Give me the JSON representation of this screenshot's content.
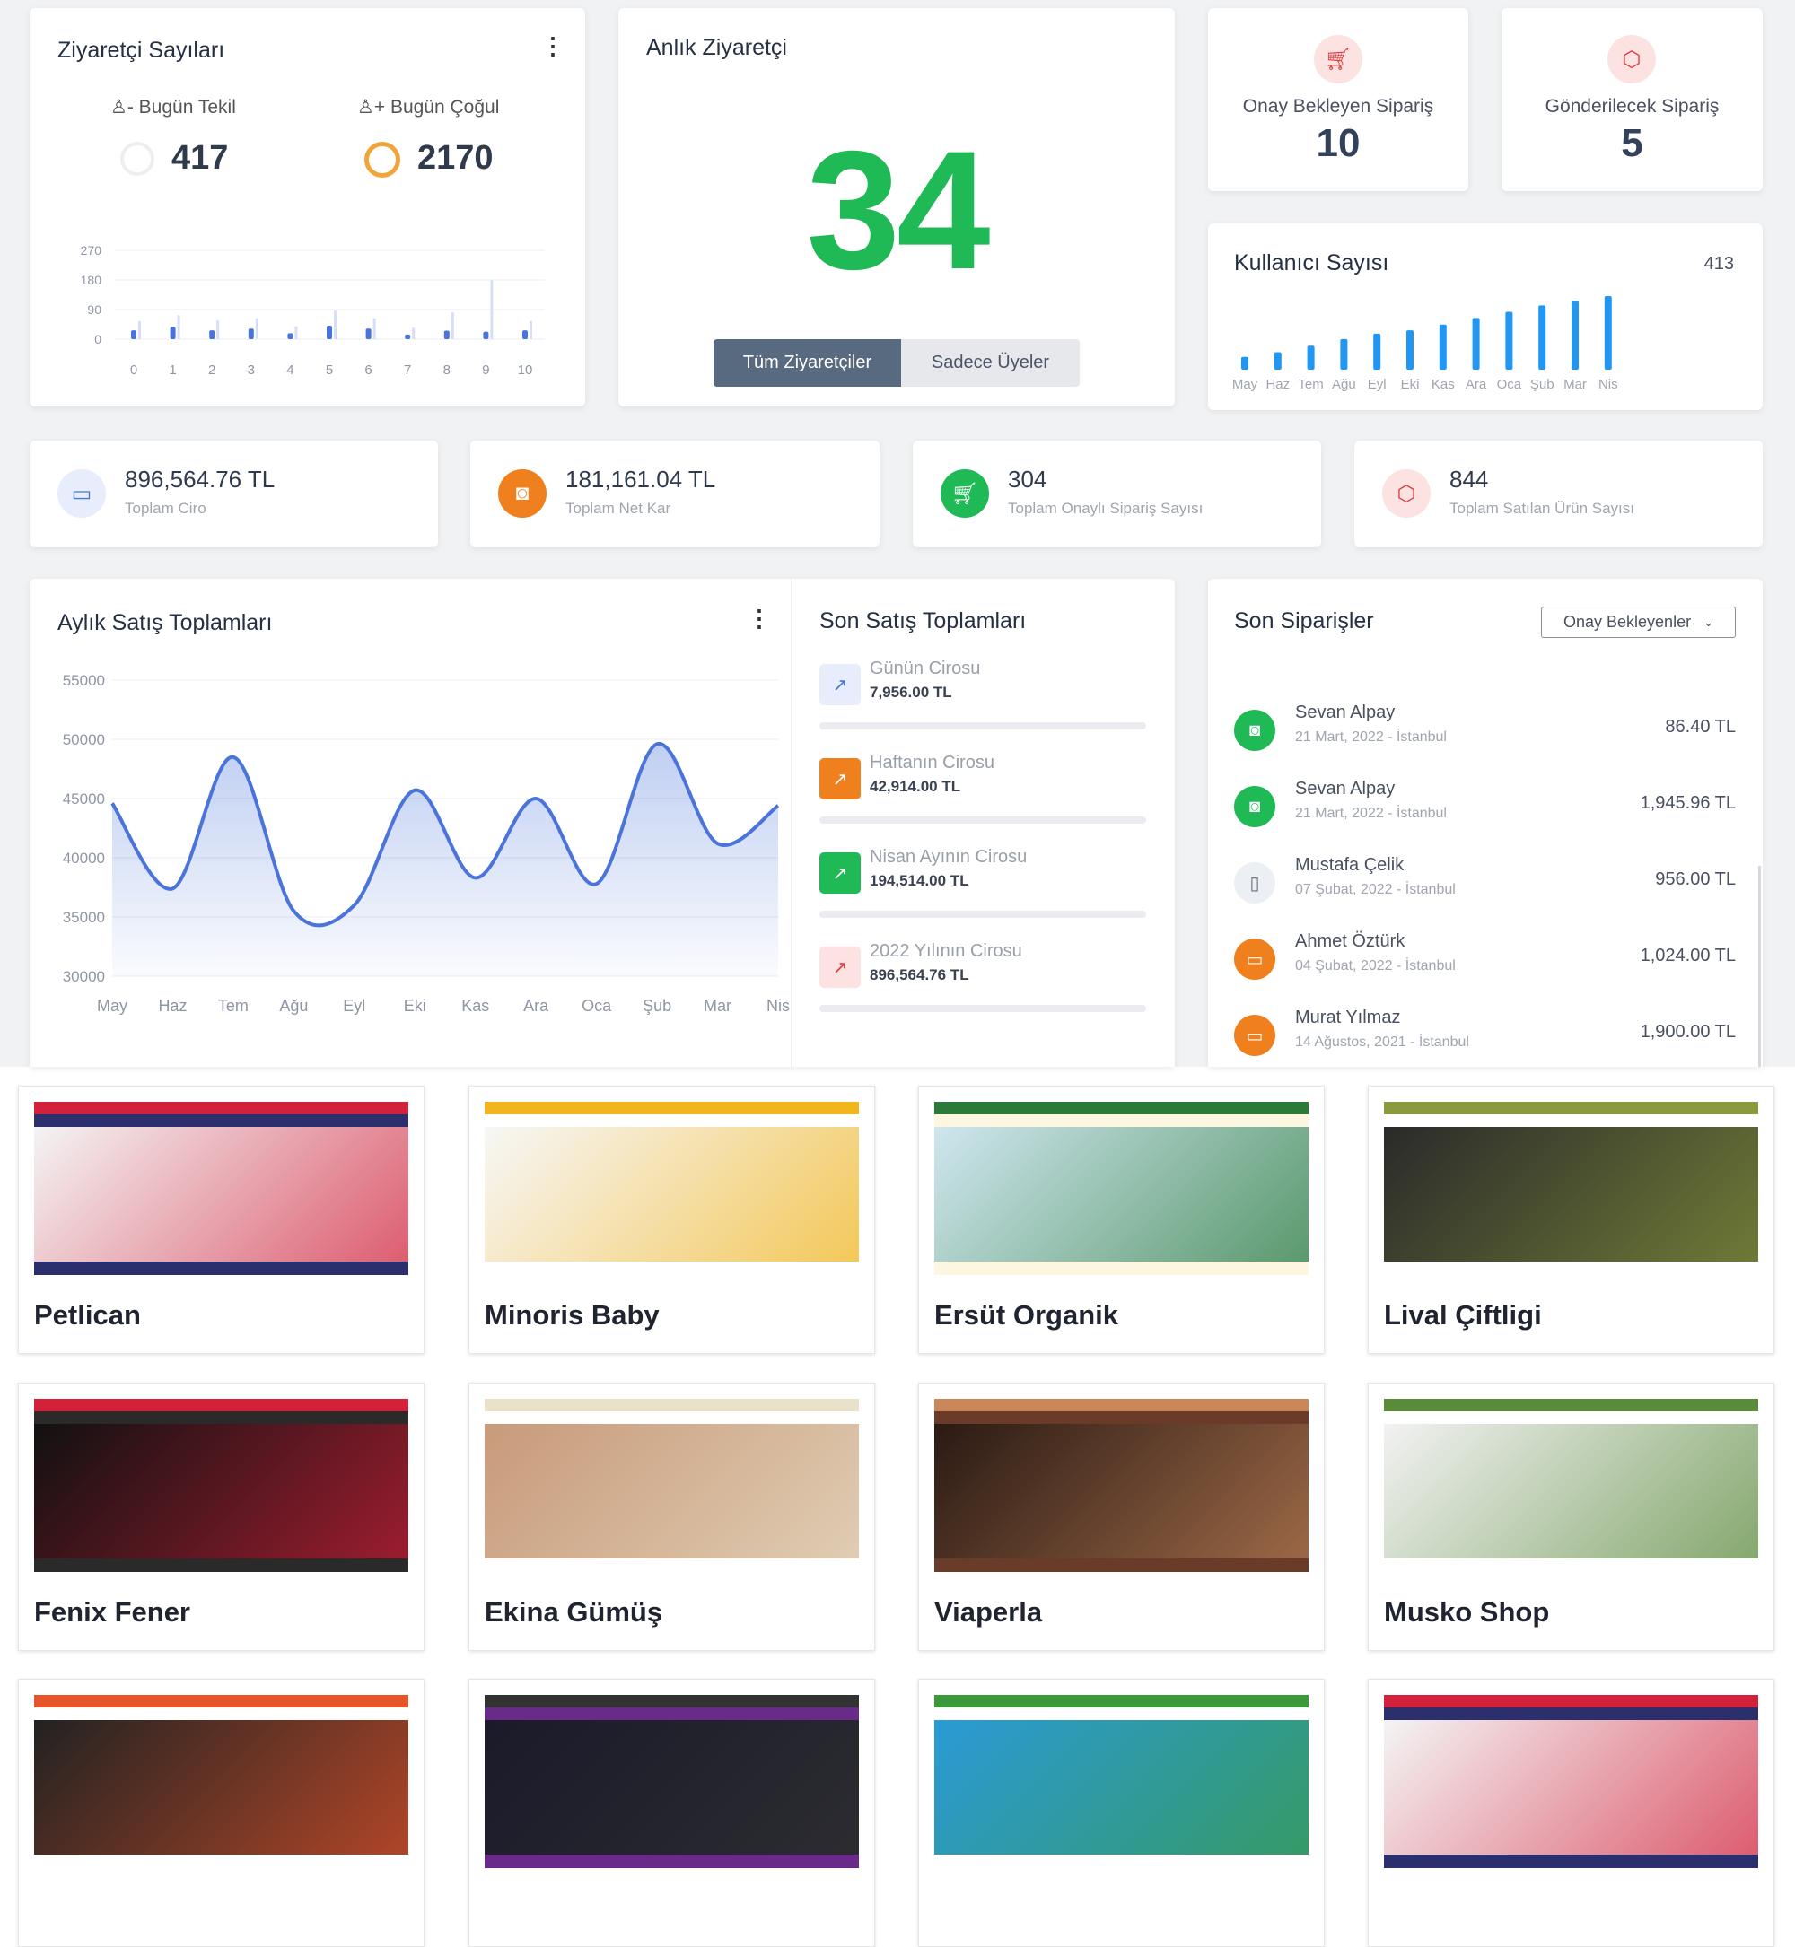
{
  "visitors": {
    "title": "Ziyaretçi Sayıları",
    "unique_label": "Bugün Tekil",
    "unique_value": "417",
    "total_label": "Bugün Çoğul",
    "total_value": "2170",
    "chart": {
      "type": "bar",
      "categories": [
        "0",
        "1",
        "2",
        "3",
        "4",
        "5",
        "6",
        "7",
        "8",
        "9",
        "10"
      ],
      "yticks": [
        "270",
        "180",
        "90",
        "0"
      ],
      "ylim": [
        0,
        270
      ],
      "series": [
        {
          "values": [
            27,
            37,
            27,
            32,
            18,
            41,
            32,
            14,
            26,
            23,
            27
          ],
          "color": "#4a74d9"
        },
        {
          "values": [
            55,
            73,
            57,
            64,
            39,
            87,
            64,
            35,
            81,
            179,
            55
          ],
          "color": "#d6defa"
        }
      ]
    }
  },
  "live": {
    "title": "Anlık Ziyaretçi",
    "value": "34",
    "color": "#1fb955",
    "btn_all": "Tüm Ziyaretçiler",
    "btn_members": "Sadece Üyeler"
  },
  "pending": {
    "label": "Onay Bekleyen Sipariş",
    "value": "10",
    "icon": "cart-icon"
  },
  "to_ship": {
    "label": "Gönderilecek Sipariş",
    "value": "5",
    "icon": "box-icon"
  },
  "users": {
    "title": "Kullanıcı Sayısı",
    "total": "413",
    "chart": {
      "type": "bar",
      "categories": [
        "May",
        "Haz",
        "Tem",
        "Ağu",
        "Eyl",
        "Eki",
        "Kas",
        "Ara",
        "Oca",
        "Şub",
        "Mar",
        "Nis"
      ],
      "values": [
        72,
        98,
        135,
        172,
        202,
        221,
        253,
        290,
        325,
        361,
        386,
        413
      ],
      "color": "#2196f3"
    }
  },
  "stats": [
    {
      "value": "896,564.76 TL",
      "label": "Toplam Ciro",
      "icon": "credit-card-icon",
      "bg": "#e8edfb",
      "fg": "#4a74d9"
    },
    {
      "value": "181,161.04 TL",
      "label": "Toplam Net Kar",
      "icon": "money-icon",
      "bg": "#f07f1e",
      "fg": "#ffffff"
    },
    {
      "value": "304",
      "label": "Toplam Onaylı Sipariş Sayısı",
      "icon": "cart-icon",
      "bg": "#1fb955",
      "fg": "#ffffff"
    },
    {
      "value": "844",
      "label": "Toplam Satılan Ürün Sayısı",
      "icon": "box-icon",
      "bg": "#fde2e2",
      "fg": "#e0393e"
    }
  ],
  "monthly": {
    "title": "Aylık Satış Toplamları",
    "chart": {
      "type": "area",
      "categories": [
        "May",
        "Haz",
        "Tem",
        "Ağu",
        "Eyl",
        "Eki",
        "Kas",
        "Ara",
        "Oca",
        "Şub",
        "Mar",
        "Nis"
      ],
      "values": [
        44600,
        37400,
        48500,
        35500,
        36000,
        45700,
        38300,
        45000,
        37800,
        49600,
        41200,
        44400
      ],
      "yticks": [
        "55000",
        "50000",
        "45000",
        "40000",
        "35000",
        "30000"
      ],
      "ylim": [
        30000,
        55000
      ],
      "color": "#4a74d9"
    }
  },
  "recent_totals": {
    "title": "Son Satış Toplamları",
    "items": [
      {
        "label": "Günün Cirosu",
        "value": "7,956.00 TL",
        "bg": "#e8edfb",
        "fg": "#4a74d9"
      },
      {
        "label": "Haftanın Cirosu",
        "value": "42,914.00 TL",
        "bg": "#f07f1e",
        "fg": "#ffffff"
      },
      {
        "label": "Nisan Ayının Cirosu",
        "value": "194,514.00 TL",
        "bg": "#1fb955",
        "fg": "#ffffff"
      },
      {
        "label": "2022 Yılının Cirosu",
        "value": "896,564.76 TL",
        "bg": "#fde2e2",
        "fg": "#e0393e"
      }
    ]
  },
  "orders": {
    "title": "Son Siparişler",
    "filter": "Onay Bekleyenler",
    "items": [
      {
        "name": "Sevan Alpay",
        "meta": "21 Mart, 2022 - İstanbul",
        "amount": "86.40 TL",
        "icon": "money-icon",
        "bg": "#1fb955",
        "fg": "#fff"
      },
      {
        "name": "Sevan Alpay",
        "meta": "21 Mart, 2022 - İstanbul",
        "amount": "1,945.96 TL",
        "icon": "money-icon",
        "bg": "#1fb955",
        "fg": "#fff"
      },
      {
        "name": "Mustafa Çelik",
        "meta": "07 Şubat, 2022 - İstanbul",
        "amount": "956.00 TL",
        "icon": "door-icon",
        "bg": "#eceff3",
        "fg": "#6b7280"
      },
      {
        "name": "Ahmet Öztürk",
        "meta": "04 Şubat, 2022 - İstanbul",
        "amount": "1,024.00 TL",
        "icon": "credit-card-icon",
        "bg": "#f07f1e",
        "fg": "#fff"
      },
      {
        "name": "Murat Yılmaz",
        "meta": "14 Ağustos, 2021 - İstanbul",
        "amount": "1,900.00 TL",
        "icon": "credit-card-icon",
        "bg": "#f07f1e",
        "fg": "#fff"
      }
    ]
  },
  "stores": [
    {
      "name": "Petlican",
      "colors": [
        "#2b2f6e",
        "#f4f4f4",
        "#d3213b"
      ]
    },
    {
      "name": "Minoris Baby",
      "colors": [
        "#ffffff",
        "#f7f7f7",
        "#f2b51b"
      ]
    },
    {
      "name": "Ersüt Organik",
      "colors": [
        "#fdf6e0",
        "#cfe6ef",
        "#2c7a3a"
      ]
    },
    {
      "name": "Lival Çiftligi",
      "colors": [
        "#ffffff",
        "#2a2a2a",
        "#8a9a3c"
      ]
    },
    {
      "name": "Fenix Fener",
      "colors": [
        "#2a2a2a",
        "#111111",
        "#d3213b"
      ]
    },
    {
      "name": "Ekina Gümüş",
      "colors": [
        "#ffffff",
        "#c89a7a",
        "#e9e1c9"
      ]
    },
    {
      "name": "Viaperla",
      "colors": [
        "#6b3b2a",
        "#2a1a14",
        "#c9875a"
      ]
    },
    {
      "name": "Musko Shop",
      "colors": [
        "#ffffff",
        "#f2f2f2",
        "#5a8a3a"
      ]
    },
    {
      "name": "",
      "colors": [
        "#ffffff",
        "#222222",
        "#e8542a"
      ]
    },
    {
      "name": "",
      "colors": [
        "#6a2a8a",
        "#1a1a2a",
        "#333333"
      ]
    },
    {
      "name": "",
      "colors": [
        "#ffffff",
        "#2a9ad6",
        "#3a9a3a"
      ]
    },
    {
      "name": "",
      "colors": [
        "#2b2f6e",
        "#f4f4f4",
        "#d3213b"
      ]
    }
  ]
}
